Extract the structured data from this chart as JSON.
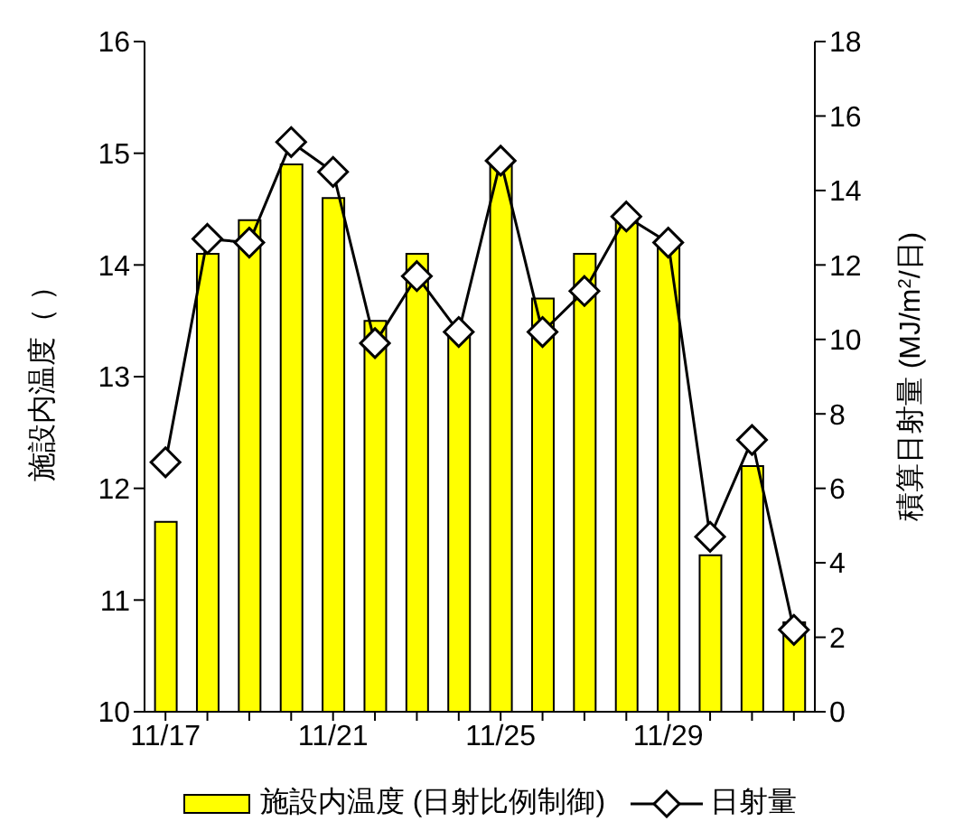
{
  "chart_data": {
    "type": "bar",
    "ylabel": "施設内温度（ ）",
    "y2label": "積算日射量 (MJ/m$^{2}$/日)",
    "categories": [
      "11/17",
      null,
      null,
      null,
      "11/21",
      null,
      null,
      null,
      "11/25",
      null,
      null,
      null,
      "11/29",
      null,
      null,
      null
    ],
    "series": [
      {
        "name": "施設内温度 (日射比例制御)",
        "color": "#ffff00",
        "values": [
          11.7,
          14.1,
          14.4,
          14.9,
          14.6,
          13.5,
          14.1,
          13.4,
          14.9,
          13.7,
          14.1,
          14.4,
          14.2,
          11.4,
          12.2,
          10.8
        ]
      },
      {
        "name": "日射量",
        "type": "line",
        "axis": "y2",
        "color": "#000000",
        "marker": "diamond",
        "values": [
          6.7,
          12.7,
          12.6,
          15.3,
          14.5,
          9.9,
          11.7,
          10.2,
          14.8,
          10.2,
          11.3,
          13.3,
          12.6,
          4.7,
          7.3,
          2.2
        ]
      }
    ],
    "ylim": [
      10,
      16
    ],
    "yticks": [
      10,
      11,
      12,
      13,
      14,
      15,
      16
    ],
    "y2lim": [
      0,
      18
    ],
    "y2ticks": [
      0,
      2,
      4,
      6,
      8,
      10,
      12,
      14,
      16,
      18
    ],
    "grid": false,
    "legend": "bottom"
  }
}
